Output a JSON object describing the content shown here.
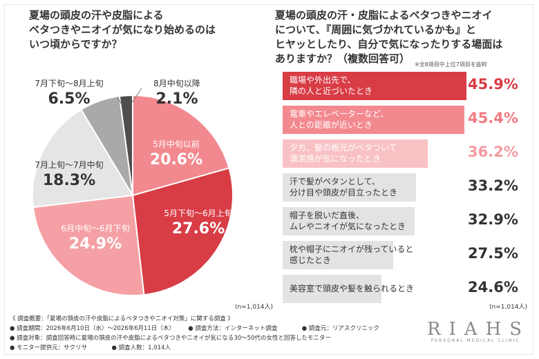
{
  "left": {
    "question": "夏場の頭皮の汗や皮脂による\nベタつきやニオイが気になり始めるのは\nいつ頃からですか？",
    "n": "(n=1,014人)"
  },
  "right": {
    "question": "夏場の頭皮の汗・皮脂によるベタつきやニオイ\nについて、『周囲に気づかれているかも』と\nヒヤッとしたり、自分で気になったりする場面は\nありますか？（複数回答可）",
    "note": "※全8項目中上位7項目を抜粋",
    "n": "(n=1,014人)"
  },
  "footer": {
    "line1": "《 調査概要：「夏場の頭皮の汗や皮脂によるベタつきやニオイ対策」に関する調査 》",
    "period": "● 調査期間：2026年6月10日（水）～2026年6月11日（木）",
    "method": "● 調査方法：インターネット調査",
    "source": "● 調査元：リアスクリニック",
    "target": "● 調査対象：調査回答時に夏場の頭皮の汗や皮脂によるベタつきやニオイが気になる30～50代の女性と回答したモニター",
    "provider": "● モニター提供元：サクリサ",
    "count": "● 調査人数：1,014人"
  },
  "logo": {
    "name": "RIAHS",
    "sub": "PERSONAL MEDICAL CLINIC"
  },
  "chart_data": [
    {
      "type": "pie",
      "title": "夏場の頭皮の汗や皮脂によるベタつきやニオイが気になり始めるのはいつ頃からですか？",
      "slices": [
        {
          "label": "5月中旬以前",
          "value": 20.6,
          "pct": "20.6%",
          "color": "#f2898f"
        },
        {
          "label": "5月下旬～6月上旬",
          "value": 27.6,
          "pct": "27.6%",
          "color": "#d83c45"
        },
        {
          "label": "6月中旬～6月下旬",
          "value": 24.9,
          "pct": "24.9%",
          "color": "#f4a0a4"
        },
        {
          "label": "7月上旬～7月中旬",
          "value": 18.3,
          "pct": "18.3%",
          "color": "#e5e5e5"
        },
        {
          "label": "7月下旬～8月上旬",
          "value": 6.5,
          "pct": "6.5%",
          "color": "#a9a9a9"
        },
        {
          "label": "8月中旬以降",
          "value": 2.1,
          "pct": "2.1%",
          "color": "#4e4e4e"
        }
      ]
    },
    {
      "type": "bar",
      "orientation": "horizontal",
      "title": "夏場の頭皮の汗・皮脂によるベタつきやニオイについて、『周囲に気づかれているかも』とヒヤッとしたり、自分で気になったりする場面はありますか？（複数回答可）",
      "xlim": [
        0,
        50
      ],
      "categories": [
        "職場や外出先で、\n隣の人と近づいたとき",
        "電車やエレベーターなど、\n人との距離が近いとき",
        "夕方、髪の根元がベタついて\n清潔感が気になったとき",
        "汗で髪がペタンとして、\n分け目や頭皮が目立ったとき",
        "帽子を脱いだ直後、\nムレやニオイが気になったとき",
        "枕や帽子にニオイが残っていると\n感じたとき",
        "美容室で頭皮や髪を触られるとき"
      ],
      "values": [
        45.9,
        45.4,
        36.2,
        33.2,
        32.9,
        27.5,
        24.6
      ],
      "pct_labels": [
        "45.9%",
        "45.4%",
        "36.2%",
        "33.2%",
        "32.9%",
        "27.5%",
        "24.6%"
      ],
      "colors": [
        "#d83c45",
        "#f2898f",
        "#f8c1c4",
        "#e3e3e3",
        "#e3e3e3",
        "#e3e3e3",
        "#e3e3e3"
      ],
      "pct_colors": [
        "#d83c45",
        "#f07a82",
        "#f39aa0",
        "#333333",
        "#333333",
        "#333333",
        "#333333"
      ],
      "label_colors": [
        "#ffffff",
        "#ffffff",
        "#ffffff",
        "#333333",
        "#333333",
        "#333333",
        "#333333"
      ]
    }
  ]
}
